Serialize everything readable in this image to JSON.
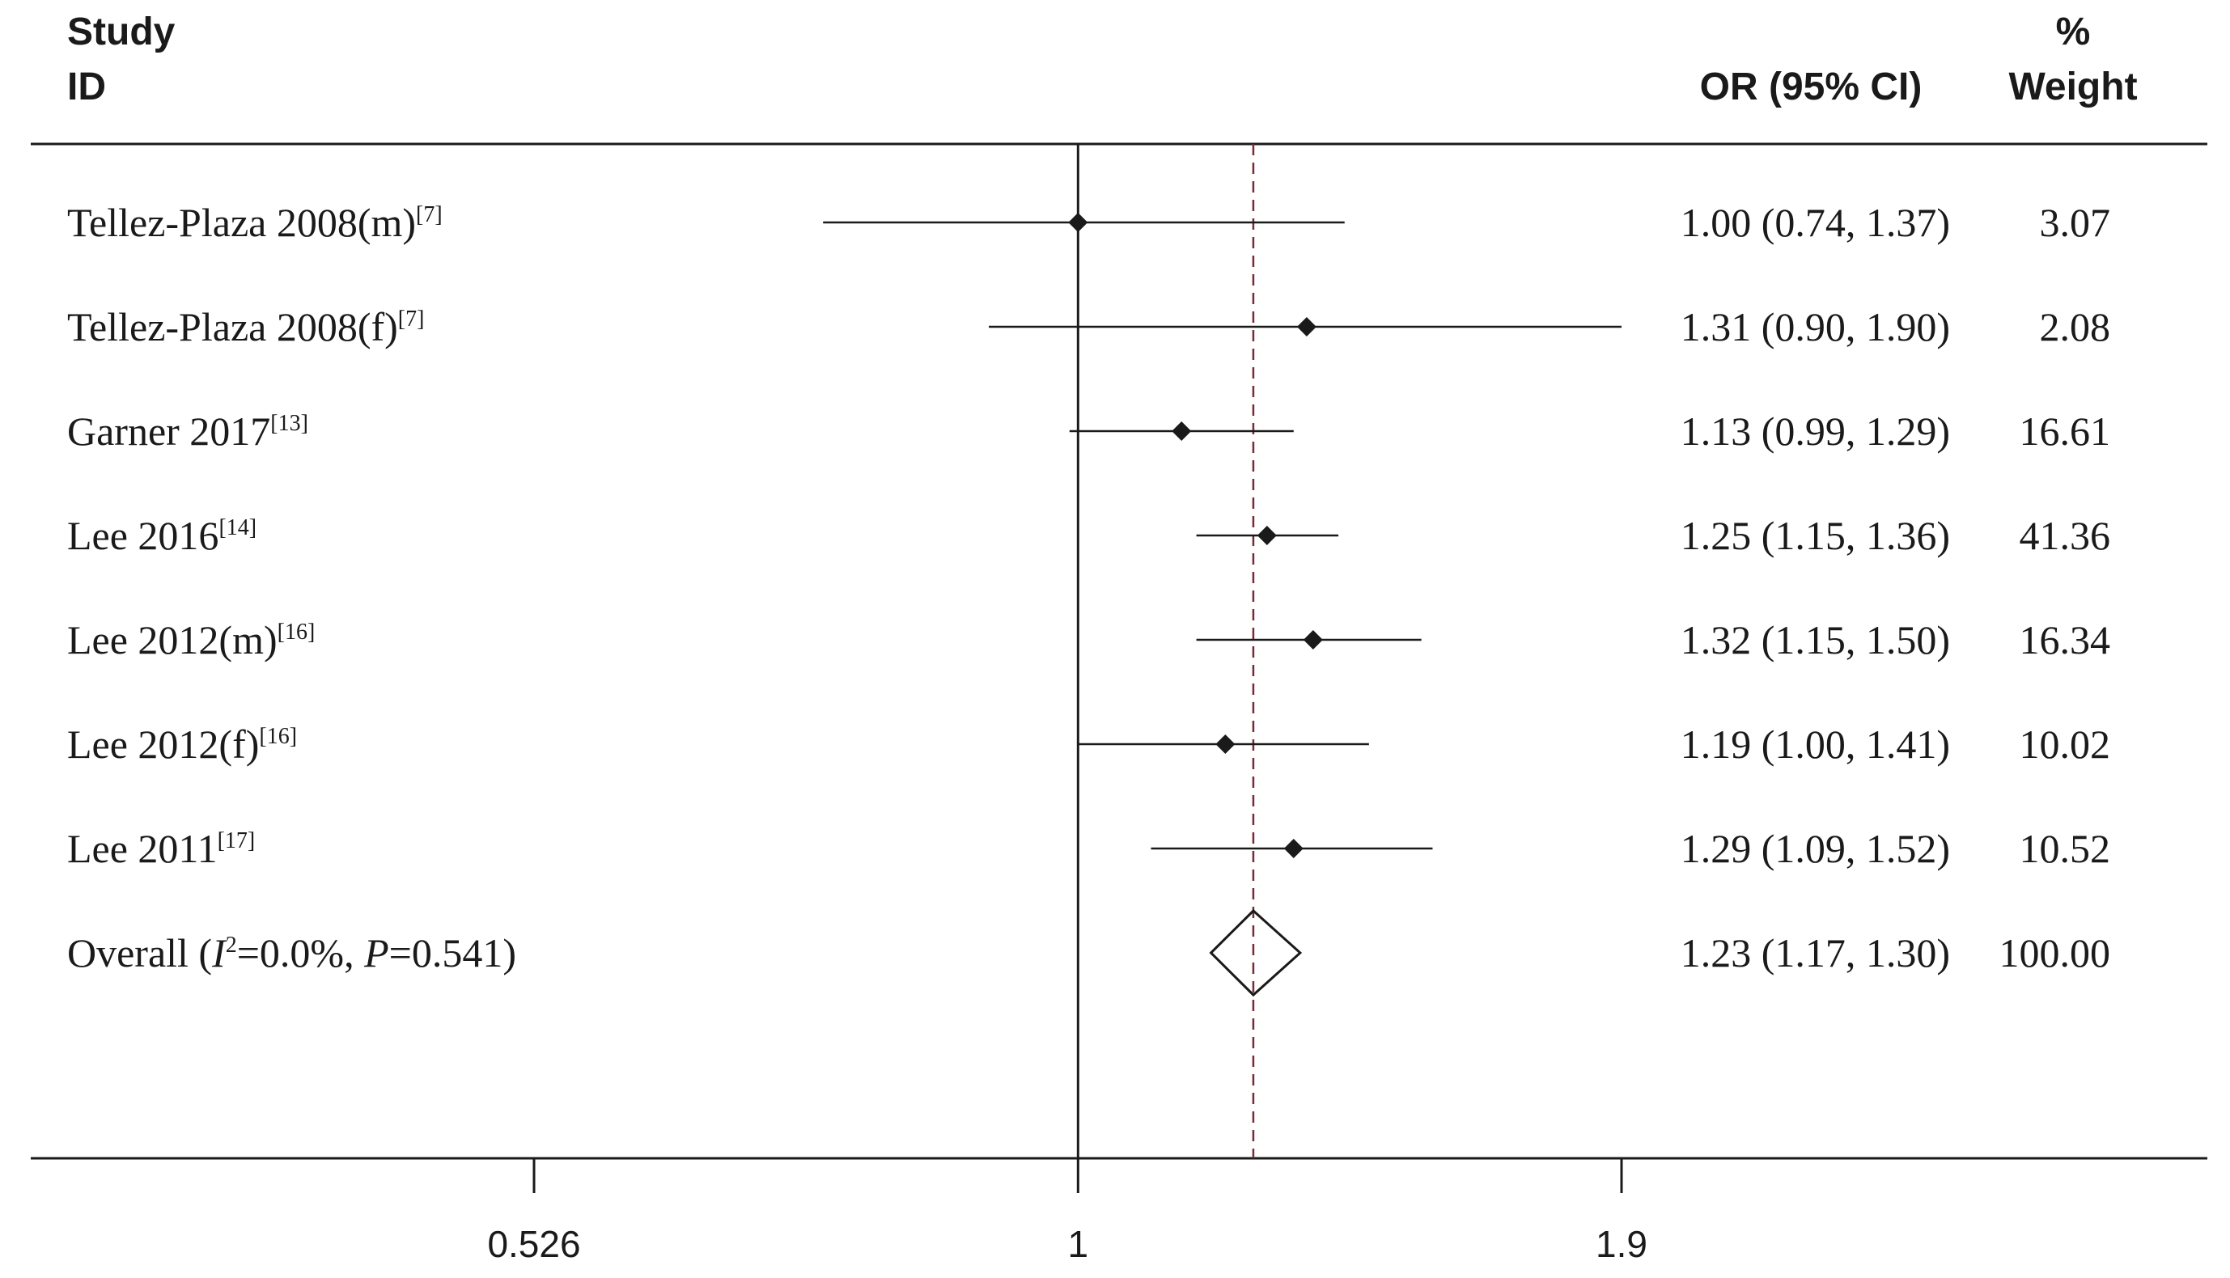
{
  "header": {
    "study_line1": "Study",
    "study_line2": "ID",
    "or_label": "OR (95% CI)",
    "weight_line1": "%",
    "weight_line2": "Weight"
  },
  "chart_data": {
    "type": "forest",
    "x_scale": "log",
    "xlim": [
      0.526,
      1.9
    ],
    "ticks": [
      "0.526",
      "1",
      "1.9"
    ],
    "null_line": 1,
    "pooled_line": 1.23,
    "studies": [
      {
        "label": "Tellez-Plaza 2008(m)",
        "ref": "[7]",
        "or": 1.0,
        "lo": 0.74,
        "hi": 1.37,
        "ci_text": "1.00 (0.74, 1.37)",
        "weight": "3.07"
      },
      {
        "label": "Tellez-Plaza 2008(f)",
        "ref": "[7]",
        "or": 1.31,
        "lo": 0.9,
        "hi": 1.9,
        "ci_text": "1.31 (0.90, 1.90)",
        "weight": "2.08"
      },
      {
        "label": "Garner 2017",
        "ref": "[13]",
        "or": 1.13,
        "lo": 0.99,
        "hi": 1.29,
        "ci_text": "1.13 (0.99, 1.29)",
        "weight": "16.61"
      },
      {
        "label": "Lee 2016",
        "ref": "[14]",
        "or": 1.25,
        "lo": 1.15,
        "hi": 1.36,
        "ci_text": "1.25 (1.15, 1.36)",
        "weight": "41.36"
      },
      {
        "label": "Lee 2012(m)",
        "ref": "[16]",
        "or": 1.32,
        "lo": 1.15,
        "hi": 1.5,
        "ci_text": "1.32 (1.15, 1.50)",
        "weight": "16.34"
      },
      {
        "label": "Lee 2012(f)",
        "ref": "[16]",
        "or": 1.19,
        "lo": 1.0,
        "hi": 1.41,
        "ci_text": "1.19 (1.00, 1.41)",
        "weight": "10.02"
      },
      {
        "label": "Lee 2011",
        "ref": "[17]",
        "or": 1.29,
        "lo": 1.09,
        "hi": 1.52,
        "ci_text": "1.29 (1.09, 1.52)",
        "weight": "10.52"
      }
    ],
    "overall": {
      "label_prefix": "Overall  (",
      "i2_symbol": "I",
      "i2_exp": "2",
      "i2_value": "=0.0%, ",
      "p_symbol": "P",
      "p_value": "=0.541)",
      "or": 1.23,
      "lo": 1.17,
      "hi": 1.3,
      "ci_text": "1.23 (1.17, 1.30)",
      "weight": "100.00"
    },
    "colors": {
      "ink": "#1a1a1a",
      "pooled_line": "#7a2a35"
    }
  }
}
